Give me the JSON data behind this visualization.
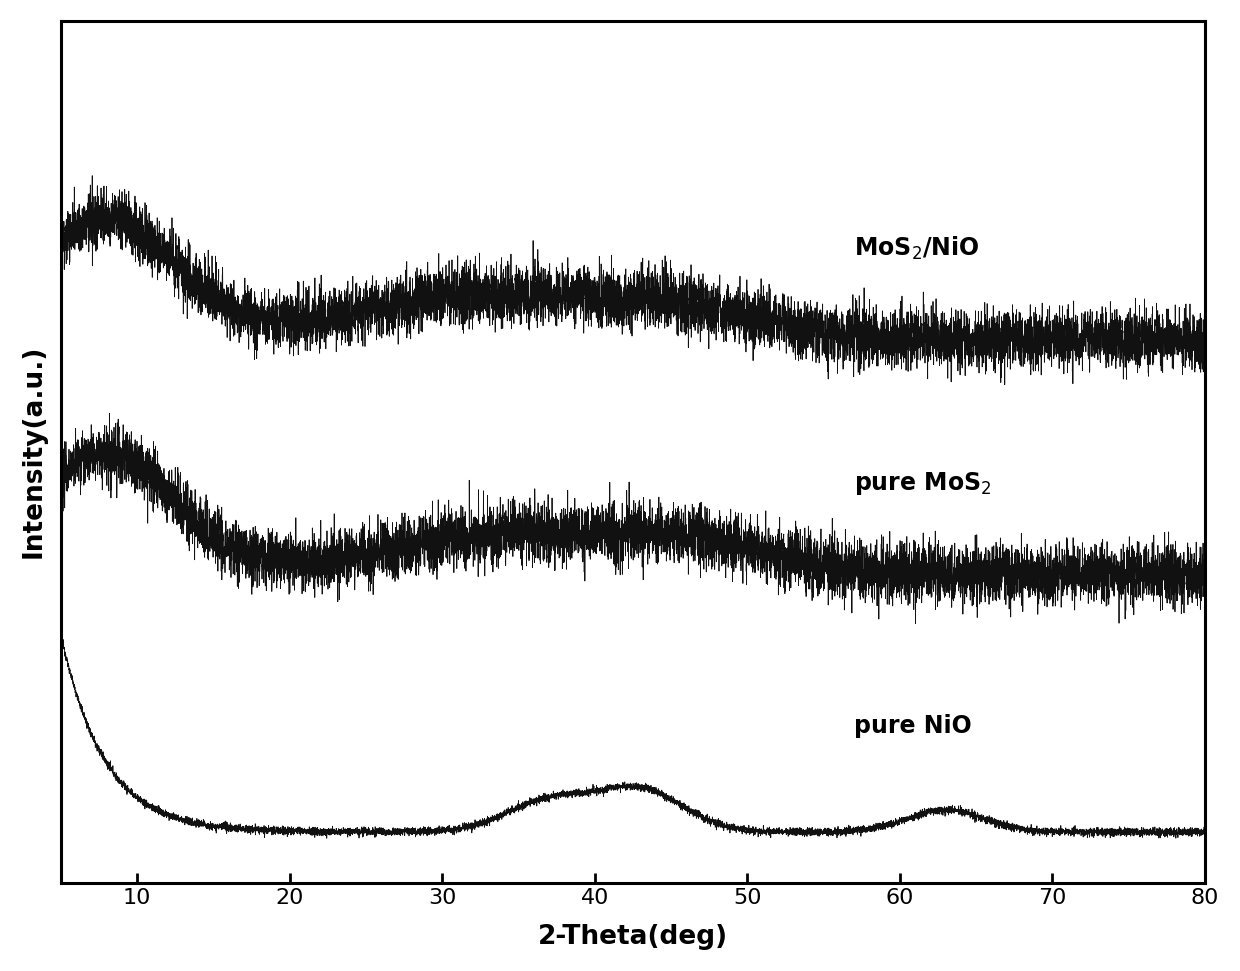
{
  "xlabel": "2-Theta(deg)",
  "ylabel": "Intensity(a.u.)",
  "xlim": [
    5,
    80
  ],
  "xticks": [
    10,
    20,
    30,
    40,
    50,
    60,
    70,
    80
  ],
  "line_color": "#111111",
  "background_color": "#ffffff",
  "linewidth": 0.6
}
